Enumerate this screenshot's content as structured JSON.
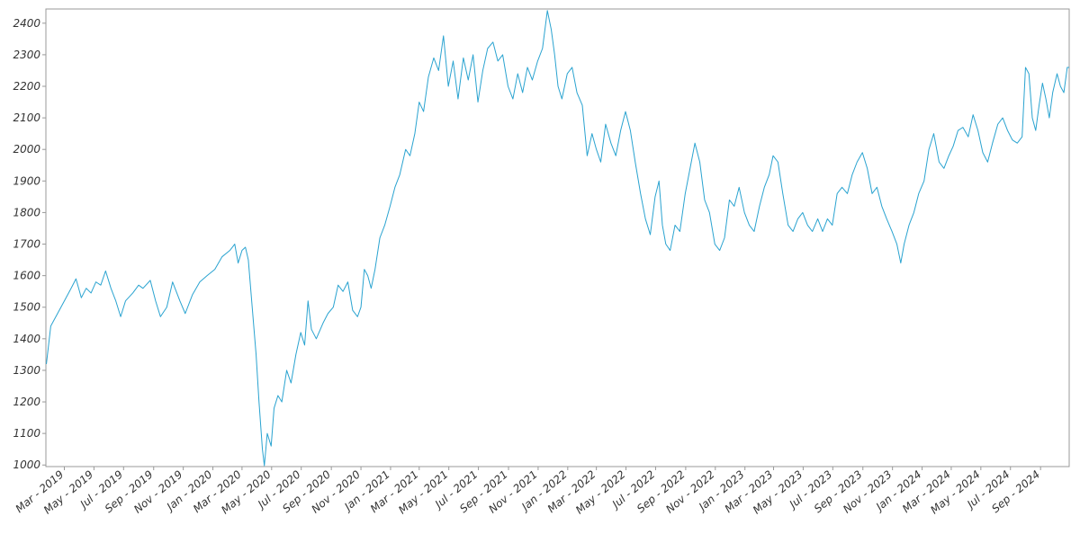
{
  "chart_data": {
    "type": "line",
    "title": "",
    "xlabel": "",
    "ylabel": "",
    "grid": false,
    "legend": "none",
    "colors": {
      "line": "#2aa3d0",
      "axis": "#999999",
      "tick_text": "#333333",
      "background": "#ffffff"
    },
    "xlim": [
      "2019-01-22",
      "2024-10-30"
    ],
    "ylim": [
      995,
      2445
    ],
    "y_ticks": [
      1000,
      1100,
      1200,
      1300,
      1400,
      1500,
      1600,
      1700,
      1800,
      1900,
      2000,
      2100,
      2200,
      2300,
      2400
    ],
    "x_ticks": [
      {
        "date": "2019-03-01",
        "label": "Mar - 2019"
      },
      {
        "date": "2019-05-01",
        "label": "May - 2019"
      },
      {
        "date": "2019-07-01",
        "label": "Jul - 2019"
      },
      {
        "date": "2019-09-01",
        "label": "Sep - 2019"
      },
      {
        "date": "2019-11-01",
        "label": "Nov - 2019"
      },
      {
        "date": "2020-01-01",
        "label": "Jan - 2020"
      },
      {
        "date": "2020-03-01",
        "label": "Mar - 2020"
      },
      {
        "date": "2020-05-01",
        "label": "May - 2020"
      },
      {
        "date": "2020-07-01",
        "label": "Jul - 2020"
      },
      {
        "date": "2020-09-01",
        "label": "Sep - 2020"
      },
      {
        "date": "2020-11-01",
        "label": "Nov - 2020"
      },
      {
        "date": "2021-01-01",
        "label": "Jan - 2021"
      },
      {
        "date": "2021-03-01",
        "label": "Mar - 2021"
      },
      {
        "date": "2021-05-01",
        "label": "May - 2021"
      },
      {
        "date": "2021-07-01",
        "label": "Jul - 2021"
      },
      {
        "date": "2021-09-01",
        "label": "Sep - 2021"
      },
      {
        "date": "2021-11-01",
        "label": "Nov - 2021"
      },
      {
        "date": "2022-01-01",
        "label": "Jan - 2022"
      },
      {
        "date": "2022-03-01",
        "label": "Mar - 2022"
      },
      {
        "date": "2022-05-01",
        "label": "May - 2022"
      },
      {
        "date": "2022-07-01",
        "label": "Jul - 2022"
      },
      {
        "date": "2022-09-01",
        "label": "Sep - 2022"
      },
      {
        "date": "2022-11-01",
        "label": "Nov - 2022"
      },
      {
        "date": "2023-01-01",
        "label": "Jan - 2023"
      },
      {
        "date": "2023-03-01",
        "label": "Mar - 2023"
      },
      {
        "date": "2023-05-01",
        "label": "May - 2023"
      },
      {
        "date": "2023-07-01",
        "label": "Jul - 2023"
      },
      {
        "date": "2023-09-01",
        "label": "Sep - 2023"
      },
      {
        "date": "2023-11-01",
        "label": "Nov - 2023"
      },
      {
        "date": "2024-01-01",
        "label": "Jan - 2024"
      },
      {
        "date": "2024-03-01",
        "label": "Mar - 2024"
      },
      {
        "date": "2024-05-01",
        "label": "May - 2024"
      },
      {
        "date": "2024-07-01",
        "label": "Jul - 2024"
      },
      {
        "date": "2024-09-01",
        "label": "Sep - 2024"
      }
    ],
    "series": [
      {
        "color": "#2aa3d0",
        "points": [
          [
            "2019-01-23",
            1320
          ],
          [
            "2019-02-01",
            1440
          ],
          [
            "2019-02-15",
            1480
          ],
          [
            "2019-03-01",
            1520
          ],
          [
            "2019-03-15",
            1560
          ],
          [
            "2019-03-25",
            1590
          ],
          [
            "2019-04-05",
            1530
          ],
          [
            "2019-04-15",
            1560
          ],
          [
            "2019-04-25",
            1545
          ],
          [
            "2019-05-05",
            1580
          ],
          [
            "2019-05-15",
            1570
          ],
          [
            "2019-05-25",
            1615
          ],
          [
            "2019-06-05",
            1560
          ],
          [
            "2019-06-15",
            1520
          ],
          [
            "2019-06-25",
            1470
          ],
          [
            "2019-07-05",
            1520
          ],
          [
            "2019-07-20",
            1545
          ],
          [
            "2019-08-01",
            1570
          ],
          [
            "2019-08-10",
            1560
          ],
          [
            "2019-08-25",
            1585
          ],
          [
            "2019-09-05",
            1520
          ],
          [
            "2019-09-15",
            1470
          ],
          [
            "2019-09-28",
            1500
          ],
          [
            "2019-10-10",
            1580
          ],
          [
            "2019-10-25",
            1520
          ],
          [
            "2019-11-05",
            1480
          ],
          [
            "2019-11-20",
            1540
          ],
          [
            "2019-12-05",
            1580
          ],
          [
            "2019-12-20",
            1600
          ],
          [
            "2020-01-05",
            1620
          ],
          [
            "2020-01-20",
            1660
          ],
          [
            "2020-02-05",
            1680
          ],
          [
            "2020-02-15",
            1700
          ],
          [
            "2020-02-22",
            1640
          ],
          [
            "2020-03-01",
            1680
          ],
          [
            "2020-03-08",
            1690
          ],
          [
            "2020-03-14",
            1650
          ],
          [
            "2020-03-22",
            1500
          ],
          [
            "2020-03-30",
            1350
          ],
          [
            "2020-04-05",
            1200
          ],
          [
            "2020-04-12",
            1050
          ],
          [
            "2020-04-16",
            998
          ],
          [
            "2020-04-22",
            1100
          ],
          [
            "2020-04-30",
            1060
          ],
          [
            "2020-05-06",
            1180
          ],
          [
            "2020-05-14",
            1220
          ],
          [
            "2020-05-22",
            1200
          ],
          [
            "2020-06-01",
            1300
          ],
          [
            "2020-06-10",
            1260
          ],
          [
            "2020-06-20",
            1350
          ],
          [
            "2020-06-30",
            1420
          ],
          [
            "2020-07-08",
            1380
          ],
          [
            "2020-07-15",
            1520
          ],
          [
            "2020-07-22",
            1430
          ],
          [
            "2020-08-01",
            1400
          ],
          [
            "2020-08-15",
            1450
          ],
          [
            "2020-08-25",
            1480
          ],
          [
            "2020-09-05",
            1500
          ],
          [
            "2020-09-15",
            1570
          ],
          [
            "2020-09-25",
            1550
          ],
          [
            "2020-10-05",
            1580
          ],
          [
            "2020-10-15",
            1490
          ],
          [
            "2020-10-25",
            1470
          ],
          [
            "2020-11-01",
            1500
          ],
          [
            "2020-11-08",
            1620
          ],
          [
            "2020-11-15",
            1600
          ],
          [
            "2020-11-22",
            1560
          ],
          [
            "2020-11-30",
            1620
          ],
          [
            "2020-12-10",
            1720
          ],
          [
            "2020-12-20",
            1760
          ],
          [
            "2020-12-31",
            1820
          ],
          [
            "2021-01-10",
            1880
          ],
          [
            "2021-01-20",
            1920
          ],
          [
            "2021-02-01",
            2000
          ],
          [
            "2021-02-10",
            1980
          ],
          [
            "2021-02-20",
            2050
          ],
          [
            "2021-03-01",
            2150
          ],
          [
            "2021-03-10",
            2120
          ],
          [
            "2021-03-20",
            2230
          ],
          [
            "2021-03-31",
            2290
          ],
          [
            "2021-04-10",
            2250
          ],
          [
            "2021-04-20",
            2360
          ],
          [
            "2021-04-30",
            2200
          ],
          [
            "2021-05-10",
            2280
          ],
          [
            "2021-05-20",
            2160
          ],
          [
            "2021-05-31",
            2290
          ],
          [
            "2021-06-10",
            2220
          ],
          [
            "2021-06-20",
            2300
          ],
          [
            "2021-06-30",
            2150
          ],
          [
            "2021-07-10",
            2250
          ],
          [
            "2021-07-20",
            2320
          ],
          [
            "2021-07-31",
            2340
          ],
          [
            "2021-08-10",
            2280
          ],
          [
            "2021-08-20",
            2300
          ],
          [
            "2021-08-31",
            2200
          ],
          [
            "2021-09-10",
            2160
          ],
          [
            "2021-09-20",
            2240
          ],
          [
            "2021-09-30",
            2180
          ],
          [
            "2021-10-10",
            2260
          ],
          [
            "2021-10-20",
            2220
          ],
          [
            "2021-10-31",
            2280
          ],
          [
            "2021-11-10",
            2320
          ],
          [
            "2021-11-20",
            2440
          ],
          [
            "2021-11-28",
            2380
          ],
          [
            "2021-12-05",
            2300
          ],
          [
            "2021-12-12",
            2200
          ],
          [
            "2021-12-20",
            2160
          ],
          [
            "2021-12-31",
            2240
          ],
          [
            "2022-01-10",
            2260
          ],
          [
            "2022-01-20",
            2180
          ],
          [
            "2022-01-31",
            2140
          ],
          [
            "2022-02-10",
            1980
          ],
          [
            "2022-02-20",
            2050
          ],
          [
            "2022-03-01",
            2000
          ],
          [
            "2022-03-10",
            1960
          ],
          [
            "2022-03-20",
            2080
          ],
          [
            "2022-03-31",
            2020
          ],
          [
            "2022-04-10",
            1980
          ],
          [
            "2022-04-20",
            2060
          ],
          [
            "2022-04-30",
            2120
          ],
          [
            "2022-05-10",
            2060
          ],
          [
            "2022-05-20",
            1960
          ],
          [
            "2022-05-31",
            1860
          ],
          [
            "2022-06-10",
            1780
          ],
          [
            "2022-06-20",
            1730
          ],
          [
            "2022-06-30",
            1850
          ],
          [
            "2022-07-08",
            1900
          ],
          [
            "2022-07-15",
            1760
          ],
          [
            "2022-07-22",
            1700
          ],
          [
            "2022-07-31",
            1680
          ],
          [
            "2022-08-10",
            1760
          ],
          [
            "2022-08-20",
            1740
          ],
          [
            "2022-08-31",
            1860
          ],
          [
            "2022-09-10",
            1940
          ],
          [
            "2022-09-20",
            2020
          ],
          [
            "2022-09-30",
            1960
          ],
          [
            "2022-10-10",
            1840
          ],
          [
            "2022-10-20",
            1800
          ],
          [
            "2022-10-31",
            1700
          ],
          [
            "2022-11-10",
            1680
          ],
          [
            "2022-11-20",
            1720
          ],
          [
            "2022-11-30",
            1840
          ],
          [
            "2022-12-10",
            1820
          ],
          [
            "2022-12-20",
            1880
          ],
          [
            "2022-12-31",
            1800
          ],
          [
            "2023-01-10",
            1760
          ],
          [
            "2023-01-20",
            1740
          ],
          [
            "2023-01-31",
            1820
          ],
          [
            "2023-02-10",
            1880
          ],
          [
            "2023-02-20",
            1920
          ],
          [
            "2023-02-28",
            1980
          ],
          [
            "2023-03-10",
            1960
          ],
          [
            "2023-03-20",
            1860
          ],
          [
            "2023-03-31",
            1760
          ],
          [
            "2023-04-10",
            1740
          ],
          [
            "2023-04-20",
            1780
          ],
          [
            "2023-04-30",
            1800
          ],
          [
            "2023-05-10",
            1760
          ],
          [
            "2023-05-20",
            1740
          ],
          [
            "2023-05-31",
            1780
          ],
          [
            "2023-06-10",
            1740
          ],
          [
            "2023-06-20",
            1780
          ],
          [
            "2023-06-30",
            1760
          ],
          [
            "2023-07-10",
            1860
          ],
          [
            "2023-07-20",
            1880
          ],
          [
            "2023-07-31",
            1860
          ],
          [
            "2023-08-10",
            1920
          ],
          [
            "2023-08-20",
            1960
          ],
          [
            "2023-08-31",
            1990
          ],
          [
            "2023-09-10",
            1940
          ],
          [
            "2023-09-20",
            1860
          ],
          [
            "2023-09-30",
            1880
          ],
          [
            "2023-10-10",
            1820
          ],
          [
            "2023-10-20",
            1780
          ],
          [
            "2023-10-31",
            1740
          ],
          [
            "2023-11-10",
            1700
          ],
          [
            "2023-11-18",
            1640
          ],
          [
            "2023-11-25",
            1700
          ],
          [
            "2023-12-05",
            1760
          ],
          [
            "2023-12-15",
            1800
          ],
          [
            "2023-12-25",
            1860
          ],
          [
            "2024-01-05",
            1900
          ],
          [
            "2024-01-15",
            2000
          ],
          [
            "2024-01-25",
            2050
          ],
          [
            "2024-02-05",
            1960
          ],
          [
            "2024-02-15",
            1940
          ],
          [
            "2024-02-25",
            1980
          ],
          [
            "2024-03-05",
            2010
          ],
          [
            "2024-03-15",
            2060
          ],
          [
            "2024-03-25",
            2070
          ],
          [
            "2024-04-05",
            2040
          ],
          [
            "2024-04-15",
            2110
          ],
          [
            "2024-04-25",
            2060
          ],
          [
            "2024-05-05",
            1990
          ],
          [
            "2024-05-15",
            1960
          ],
          [
            "2024-05-25",
            2020
          ],
          [
            "2024-06-05",
            2080
          ],
          [
            "2024-06-15",
            2100
          ],
          [
            "2024-06-25",
            2060
          ],
          [
            "2024-07-05",
            2030
          ],
          [
            "2024-07-15",
            2020
          ],
          [
            "2024-07-25",
            2040
          ],
          [
            "2024-08-01",
            2260
          ],
          [
            "2024-08-08",
            2240
          ],
          [
            "2024-08-15",
            2100
          ],
          [
            "2024-08-22",
            2060
          ],
          [
            "2024-08-29",
            2140
          ],
          [
            "2024-09-05",
            2210
          ],
          [
            "2024-09-12",
            2160
          ],
          [
            "2024-09-19",
            2100
          ],
          [
            "2024-09-26",
            2180
          ],
          [
            "2024-10-05",
            2240
          ],
          [
            "2024-10-12",
            2200
          ],
          [
            "2024-10-19",
            2180
          ],
          [
            "2024-10-26",
            2260
          ],
          [
            "2024-10-30",
            2260
          ]
        ]
      }
    ]
  }
}
